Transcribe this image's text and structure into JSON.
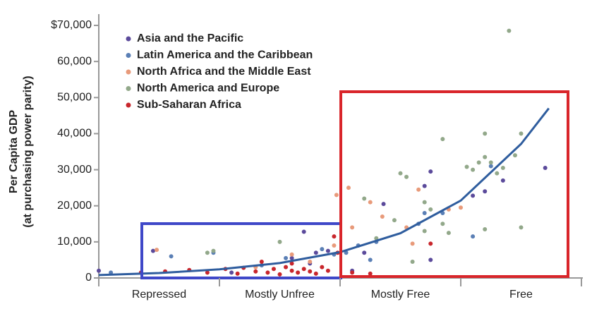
{
  "chart_data": {
    "type": "scatter",
    "ylabel": [
      "Per Capita GDP",
      "(at purchasing power parity)"
    ],
    "categories": [
      "Repressed",
      "Mostly Unfree",
      "Mostly Free",
      "Free"
    ],
    "xlim": [
      0,
      4
    ],
    "ylim": [
      0,
      70000
    ],
    "yticks": [
      0,
      {
        "value": 10000,
        "label": "10,000"
      },
      {
        "value": 20000,
        "label": "20,000"
      },
      {
        "value": 30000,
        "label": "30,000"
      },
      {
        "value": 40000,
        "label": "40,000"
      },
      {
        "value": 50000,
        "label": "50,000"
      },
      {
        "value": 60000,
        "label": "60,000"
      },
      {
        "value": 70000,
        "label": "$70,000"
      }
    ],
    "legend": "top-left",
    "series": [
      {
        "name": "Asia and the Pacific",
        "color": "#5b4a9b",
        "x": [
          0.0,
          0.45,
          1.1,
          1.7,
          1.8,
          1.9,
          1.75,
          2.36,
          2.75,
          2.7,
          2.75,
          3.2,
          3.35,
          3.7,
          3.1,
          2.1,
          1.6,
          2.2
        ],
        "values": [
          2000,
          7500,
          1500,
          12800,
          7000,
          7500,
          4000,
          20500,
          29500,
          25500,
          5000,
          24000,
          27000,
          30500,
          22800,
          2000,
          5500,
          7000
        ]
      },
      {
        "name": "Latin America and the Caribbean",
        "color": "#5a7fb5",
        "x": [
          0.1,
          0.6,
          0.95,
          1.35,
          1.55,
          1.85,
          2.05,
          2.15,
          2.25,
          2.3,
          2.7,
          2.65,
          2.85,
          3.1,
          3.25,
          1.95
        ],
        "values": [
          1500,
          6000,
          7000,
          3500,
          5500,
          8000,
          7000,
          9000,
          5000,
          10000,
          18000,
          15000,
          18000,
          11500,
          31000,
          6500
        ]
      },
      {
        "name": "North Africa and the Middle East",
        "color": "#e89a7a",
        "x": [
          0.48,
          1.3,
          1.6,
          1.95,
          1.97,
          2.07,
          2.25,
          2.1,
          2.35,
          2.55,
          2.65,
          2.9,
          3.0,
          2.6,
          1.75
        ],
        "values": [
          7800,
          3000,
          6500,
          9000,
          23000,
          25000,
          21000,
          14000,
          17000,
          14000,
          24500,
          19000,
          19500,
          9500,
          4500
        ]
      },
      {
        "name": "North America and Europe",
        "color": "#92a88a",
        "x": [
          0.9,
          0.95,
          1.5,
          2.3,
          2.2,
          2.5,
          2.55,
          2.7,
          2.7,
          2.85,
          2.9,
          3.05,
          3.2,
          3.1,
          3.15,
          3.2,
          3.25,
          3.3,
          3.35,
          3.45,
          3.5,
          3.5,
          3.2,
          2.75,
          2.45,
          3.4,
          2.6,
          2.85
        ],
        "values": [
          7000,
          7500,
          10000,
          11000,
          22000,
          29000,
          28000,
          21000,
          13000,
          38500,
          12500,
          30800,
          40000,
          30000,
          32000,
          33500,
          32000,
          29000,
          30500,
          34000,
          40000,
          14000,
          13500,
          19000,
          16000,
          68500,
          4500,
          15000
        ]
      },
      {
        "name": "Sub-Saharan Africa",
        "color": "#c8262c",
        "x": [
          0.35,
          0.55,
          0.75,
          0.9,
          1.05,
          1.15,
          1.2,
          1.3,
          1.4,
          1.45,
          1.5,
          1.55,
          1.6,
          1.65,
          1.7,
          1.75,
          1.8,
          1.85,
          1.9,
          1.95,
          1.98,
          2.1,
          2.25,
          2.75,
          1.35,
          1.6
        ],
        "values": [
          1500,
          1800,
          2200,
          1500,
          2500,
          1200,
          2800,
          1800,
          1500,
          2500,
          1000,
          3000,
          2000,
          1500,
          2500,
          1800,
          1200,
          3000,
          2000,
          11500,
          7000,
          1500,
          1200,
          9500,
          4500,
          4000
        ]
      }
    ],
    "trendline": {
      "color": "#2f5d9e",
      "x": [
        0,
        0.5,
        1,
        1.5,
        2,
        2.5,
        3,
        3.5,
        3.73
      ],
      "values": [
        800,
        1375,
        2384,
        4130,
        7150,
        12390,
        21450,
        37160,
        47000
      ]
    }
  }
}
